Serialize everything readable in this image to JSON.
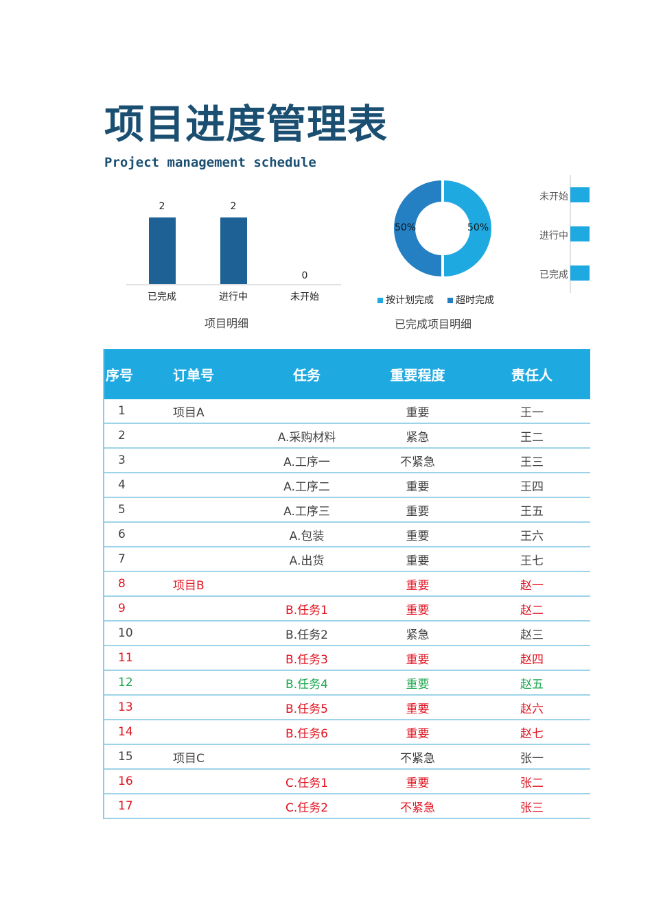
{
  "header": {
    "title": "项目进度管理表",
    "subtitle": "Project management schedule"
  },
  "colors": {
    "title": "#1B4F72",
    "header_bg": "#1FA9E1",
    "bar": "#1D6195",
    "donut_on_plan": "#1FA9E1",
    "donut_overtime": "#2580C3",
    "row_red": "#E0121F",
    "row_green": "#1BA74E",
    "row_gray": "#404040",
    "row_border": "#9DD3E8"
  },
  "chart_data": [
    {
      "type": "bar",
      "title": "项目明细",
      "categories": [
        "已完成",
        "进行中",
        "未开始"
      ],
      "values": [
        2,
        2,
        0
      ],
      "value_labels": [
        "2",
        "2",
        "0"
      ],
      "xlabel": "",
      "ylabel": "",
      "ylim": [
        0,
        2.3
      ],
      "grid": false,
      "legend": "none"
    },
    {
      "type": "pie",
      "subtype": "donut",
      "title": "已完成项目明细",
      "categories": [
        "按计划完成",
        "超时完成"
      ],
      "values": [
        50,
        50
      ],
      "value_labels": [
        "50%",
        "50%"
      ],
      "legend": "bottom"
    },
    {
      "type": "bar",
      "orientation": "horizontal",
      "title": "",
      "categories": [
        "未开始",
        "进行中",
        "已完成"
      ],
      "note": "clipped at page edge; bar lengths not fully visible"
    }
  ],
  "charts": {
    "bar": {
      "title": "项目明细",
      "items": [
        {
          "label": "已完成",
          "value": "2"
        },
        {
          "label": "进行中",
          "value": "2"
        },
        {
          "label": "未开始",
          "value": "0"
        }
      ]
    },
    "donut": {
      "title": "已完成项目明细",
      "left_label": "50%",
      "right_label": "50%",
      "legend": [
        {
          "label": "按计划完成"
        },
        {
          "label": "超时完成"
        }
      ]
    },
    "hbar": {
      "items": [
        {
          "label": "未开始"
        },
        {
          "label": "进行中"
        },
        {
          "label": "已完成"
        }
      ]
    }
  },
  "table": {
    "columns": [
      "序号",
      "订单号",
      "任务",
      "重要程度",
      "责任人"
    ],
    "rows": [
      {
        "no": "1",
        "order": "项目A",
        "task": "",
        "priority": "重要",
        "owner": "王一",
        "tone": "gray"
      },
      {
        "no": "2",
        "order": "",
        "task": "A.采购材料",
        "priority": "紧急",
        "owner": "王二",
        "tone": "gray"
      },
      {
        "no": "3",
        "order": "",
        "task": "A.工序一",
        "priority": "不紧急",
        "owner": "王三",
        "tone": "gray"
      },
      {
        "no": "4",
        "order": "",
        "task": "A.工序二",
        "priority": "重要",
        "owner": "王四",
        "tone": "gray"
      },
      {
        "no": "5",
        "order": "",
        "task": "A.工序三",
        "priority": "重要",
        "owner": "王五",
        "tone": "gray"
      },
      {
        "no": "6",
        "order": "",
        "task": "A.包装",
        "priority": "重要",
        "owner": "王六",
        "tone": "gray"
      },
      {
        "no": "7",
        "order": "",
        "task": "A.出货",
        "priority": "重要",
        "owner": "王七",
        "tone": "gray"
      },
      {
        "no": "8",
        "order": "项目B",
        "task": "",
        "priority": "重要",
        "owner": "赵一",
        "tone": "red"
      },
      {
        "no": "9",
        "order": "",
        "task": "B.任务1",
        "priority": "重要",
        "owner": "赵二",
        "tone": "red"
      },
      {
        "no": "10",
        "order": "",
        "task": "B.任务2",
        "priority": "紧急",
        "owner": "赵三",
        "tone": "gray"
      },
      {
        "no": "11",
        "order": "",
        "task": "B.任务3",
        "priority": "重要",
        "owner": "赵四",
        "tone": "red"
      },
      {
        "no": "12",
        "order": "",
        "task": "B.任务4",
        "priority": "重要",
        "owner": "赵五",
        "tone": "green"
      },
      {
        "no": "13",
        "order": "",
        "task": "B.任务5",
        "priority": "重要",
        "owner": "赵六",
        "tone": "red"
      },
      {
        "no": "14",
        "order": "",
        "task": "B.任务6",
        "priority": "重要",
        "owner": "赵七",
        "tone": "red"
      },
      {
        "no": "15",
        "order": "项目C",
        "task": "",
        "priority": "不紧急",
        "owner": "张一",
        "tone": "gray"
      },
      {
        "no": "16",
        "order": "",
        "task": "C.任务1",
        "priority": "重要",
        "owner": "张二",
        "tone": "red"
      },
      {
        "no": "17",
        "order": "",
        "task": "C.任务2",
        "priority": "不紧急",
        "owner": "张三",
        "tone": "red"
      }
    ]
  }
}
